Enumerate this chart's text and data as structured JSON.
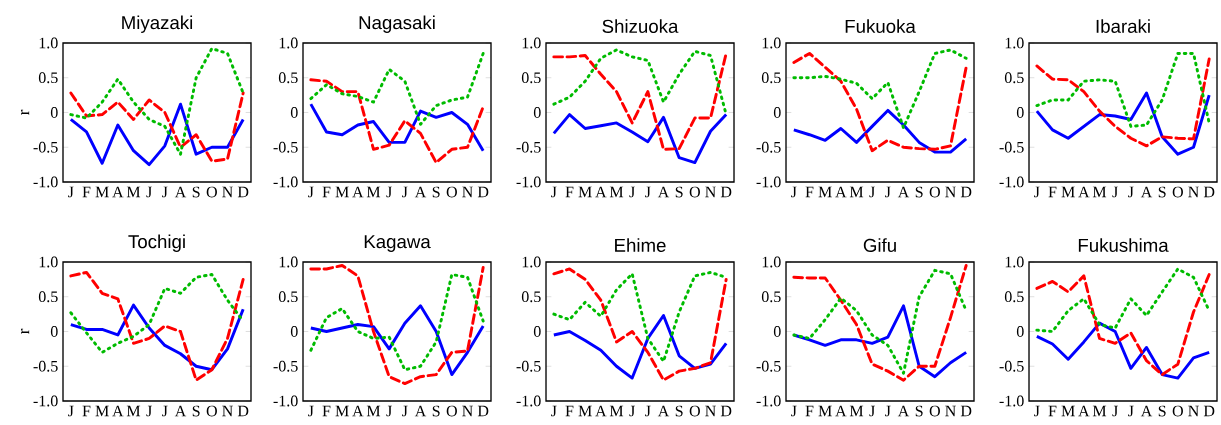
{
  "chart_data": [
    {
      "type": "line",
      "title": "Miyazaki",
      "ylabel": "r",
      "categories": [
        "J",
        "F",
        "M",
        "A",
        "M",
        "J",
        "J",
        "A",
        "S",
        "O",
        "N",
        "D"
      ],
      "ylim": [
        -1,
        1
      ],
      "yticks": [
        {
          "value": -1,
          "label": "-1.0"
        },
        {
          "value": -0.5,
          "label": "-0.5"
        },
        0,
        {
          "value": 0.5,
          "label": "0.5"
        },
        {
          "value": 1,
          "label": "1.0"
        }
      ],
      "series": [
        {
          "color": "#0000ff",
          "line_style": "solid",
          "values": [
            -0.1,
            -0.28,
            -0.73,
            -0.18,
            -0.55,
            -0.75,
            -0.48,
            0.12,
            -0.6,
            -0.5,
            -0.5,
            -0.1
          ]
        },
        {
          "color": "#ff0000",
          "line_style": "dashed",
          "values": [
            0.28,
            -0.05,
            -0.03,
            0.15,
            -0.1,
            0.18,
            0,
            -0.5,
            -0.32,
            -0.7,
            -0.67,
            0.28
          ]
        },
        {
          "color": "#00bb00",
          "line_style": "dotted",
          "values": [
            -0.03,
            -0.08,
            0.15,
            0.48,
            0.15,
            -0.1,
            -0.2,
            -0.6,
            0.5,
            0.92,
            0.85,
            0.28
          ]
        }
      ]
    },
    {
      "type": "line",
      "title": "Nagasaki",
      "categories": [
        "J",
        "F",
        "M",
        "A",
        "M",
        "J",
        "J",
        "A",
        "S",
        "O",
        "N",
        "D"
      ],
      "ylim": [
        -1,
        1
      ],
      "yticks": [
        {
          "value": -1,
          "label": "-1.0"
        },
        {
          "value": -0.5,
          "label": "-0.5"
        },
        0,
        {
          "value": 0.5,
          "label": "0.5"
        },
        {
          "value": 1,
          "label": "1.0"
        }
      ],
      "series": [
        {
          "color": "#0000ff",
          "line_style": "solid",
          "values": [
            0.12,
            -0.28,
            -0.32,
            -0.18,
            -0.13,
            -0.43,
            -0.43,
            0.02,
            -0.07,
            0.0,
            -0.17,
            -0.55
          ]
        },
        {
          "color": "#ff0000",
          "line_style": "dashed",
          "values": [
            0.47,
            0.45,
            0.3,
            0.3,
            -0.53,
            -0.47,
            -0.12,
            -0.3,
            -0.72,
            -0.53,
            -0.5,
            0.08
          ]
        },
        {
          "color": "#00bb00",
          "line_style": "dotted",
          "values": [
            0.2,
            0.4,
            0.27,
            0.23,
            0.15,
            0.62,
            0.45,
            -0.17,
            0.1,
            0.18,
            0.22,
            0.85
          ]
        }
      ]
    },
    {
      "type": "line",
      "title": "Shizuoka",
      "categories": [
        "J",
        "F",
        "M",
        "A",
        "M",
        "J",
        "J",
        "A",
        "S",
        "O",
        "N",
        "D"
      ],
      "ylim": [
        -1,
        1
      ],
      "yticks": [
        {
          "value": -1,
          "label": "-1.0"
        },
        {
          "value": -0.5,
          "label": "-0.5"
        },
        0,
        {
          "value": 0.5,
          "label": "0.5"
        },
        {
          "value": 1,
          "label": "1.0"
        }
      ],
      "series": [
        {
          "color": "#0000ff",
          "line_style": "solid",
          "values": [
            -0.3,
            -0.03,
            -0.23,
            -0.19,
            -0.15,
            -0.28,
            -0.42,
            -0.07,
            -0.65,
            -0.72,
            -0.27,
            -0.03
          ]
        },
        {
          "color": "#ff0000",
          "line_style": "dashed",
          "values": [
            0.8,
            0.8,
            0.82,
            0.55,
            0.3,
            -0.15,
            0.3,
            -0.53,
            -0.52,
            -0.08,
            -0.08,
            0.85
          ]
        },
        {
          "color": "#00bb00",
          "line_style": "dotted",
          "values": [
            0.12,
            0.22,
            0.45,
            0.78,
            0.9,
            0.8,
            0.75,
            0.15,
            0.55,
            0.88,
            0.82,
            -0.03
          ]
        }
      ]
    },
    {
      "type": "line",
      "title": "Fukuoka",
      "categories": [
        "J",
        "F",
        "M",
        "A",
        "M",
        "J",
        "J",
        "A",
        "S",
        "O",
        "N",
        "D"
      ],
      "ylim": [
        -1,
        1
      ],
      "yticks": [
        {
          "value": -1,
          "label": "-1.0"
        },
        {
          "value": -0.5,
          "label": "-0.5"
        },
        0,
        {
          "value": 0.5,
          "label": "0.5"
        },
        {
          "value": 1,
          "label": "1.0"
        }
      ],
      "series": [
        {
          "color": "#0000ff",
          "line_style": "solid",
          "values": [
            -0.25,
            -0.32,
            -0.4,
            -0.23,
            -0.43,
            -0.2,
            0.03,
            -0.18,
            -0.43,
            -0.57,
            -0.57,
            -0.38
          ]
        },
        {
          "color": "#ff0000",
          "line_style": "dashed",
          "values": [
            0.72,
            0.85,
            0.65,
            0.45,
            0.05,
            -0.55,
            -0.4,
            -0.5,
            -0.52,
            -0.53,
            -0.48,
            0.65
          ]
        },
        {
          "color": "#00bb00",
          "line_style": "dotted",
          "values": [
            0.5,
            0.5,
            0.52,
            0.48,
            0.42,
            0.2,
            0.43,
            -0.22,
            0.3,
            0.85,
            0.9,
            0.78
          ]
        }
      ]
    },
    {
      "type": "line",
      "title": "Ibaraki",
      "categories": [
        "J",
        "F",
        "M",
        "A",
        "M",
        "J",
        "J",
        "A",
        "S",
        "O",
        "N",
        "D"
      ],
      "ylim": [
        -1,
        1
      ],
      "yticks": [
        {
          "value": -1,
          "label": "-1.0"
        },
        {
          "value": -0.5,
          "label": "-0.5"
        },
        0,
        {
          "value": 0.5,
          "label": "0.5"
        },
        {
          "value": 1,
          "label": "1.0"
        }
      ],
      "series": [
        {
          "color": "#0000ff",
          "line_style": "solid",
          "values": [
            0.02,
            -0.25,
            -0.37,
            -0.2,
            -0.03,
            -0.05,
            -0.1,
            0.28,
            -0.35,
            -0.6,
            -0.5,
            0.25
          ]
        },
        {
          "color": "#ff0000",
          "line_style": "dashed",
          "values": [
            0.67,
            0.48,
            0.47,
            0.3,
            0.02,
            -0.2,
            -0.37,
            -0.48,
            -0.35,
            -0.37,
            -0.38,
            0.77
          ]
        },
        {
          "color": "#00bb00",
          "line_style": "dotted",
          "values": [
            0.1,
            0.18,
            0.18,
            0.45,
            0.47,
            0.45,
            -0.2,
            -0.18,
            0.18,
            0.85,
            0.85,
            -0.15
          ]
        }
      ]
    },
    {
      "type": "line",
      "title": "Tochigi",
      "ylabel": "r",
      "categories": [
        "J",
        "F",
        "M",
        "A",
        "M",
        "J",
        "J",
        "A",
        "S",
        "O",
        "N",
        "D"
      ],
      "ylim": [
        -1,
        1
      ],
      "yticks": [
        {
          "value": -1,
          "label": "-1.0"
        },
        {
          "value": -0.5,
          "label": "-0.5"
        },
        0,
        {
          "value": 0.5,
          "label": "0.5"
        },
        {
          "value": 1,
          "label": "1.0"
        }
      ],
      "series": [
        {
          "color": "#0000ff",
          "line_style": "solid",
          "values": [
            0.1,
            0.03,
            0.03,
            -0.05,
            0.38,
            0.05,
            -0.2,
            -0.32,
            -0.5,
            -0.55,
            -0.25,
            0.32
          ]
        },
        {
          "color": "#ff0000",
          "line_style": "dashed",
          "values": [
            0.8,
            0.85,
            0.55,
            0.47,
            -0.17,
            -0.1,
            0.08,
            0.0,
            -0.7,
            -0.55,
            -0.1,
            0.75
          ]
        },
        {
          "color": "#00bb00",
          "line_style": "dotted",
          "values": [
            0.27,
            -0.02,
            -0.3,
            -0.17,
            -0.07,
            0.1,
            0.62,
            0.55,
            0.78,
            0.82,
            0.45,
            0.15
          ]
        }
      ]
    },
    {
      "type": "line",
      "title": "Kagawa",
      "categories": [
        "J",
        "F",
        "M",
        "A",
        "M",
        "J",
        "J",
        "A",
        "S",
        "O",
        "N",
        "D"
      ],
      "ylim": [
        -1,
        1
      ],
      "yticks": [
        {
          "value": -1,
          "label": "-1.0"
        },
        {
          "value": -0.5,
          "label": "-0.5"
        },
        0,
        {
          "value": 0.5,
          "label": "0.5"
        },
        {
          "value": 1,
          "label": "1.0"
        }
      ],
      "series": [
        {
          "color": "#0000ff",
          "line_style": "solid",
          "values": [
            0.05,
            0.0,
            0.05,
            0.1,
            0.07,
            -0.25,
            0.12,
            0.37,
            0.0,
            -0.62,
            -0.3,
            0.08
          ]
        },
        {
          "color": "#ff0000",
          "line_style": "dashed",
          "values": [
            0.9,
            0.9,
            0.95,
            0.8,
            0.0,
            -0.65,
            -0.75,
            -0.65,
            -0.62,
            -0.3,
            -0.28,
            0.92
          ]
        },
        {
          "color": "#00bb00",
          "line_style": "dotted",
          "values": [
            -0.27,
            0.2,
            0.33,
            0.0,
            -0.1,
            -0.08,
            -0.55,
            -0.5,
            -0.15,
            0.82,
            0.78,
            0.15
          ]
        }
      ]
    },
    {
      "type": "line",
      "title": "Ehime",
      "categories": [
        "J",
        "F",
        "M",
        "A",
        "M",
        "J",
        "J",
        "A",
        "S",
        "O",
        "N",
        "D"
      ],
      "ylim": [
        -1,
        1
      ],
      "yticks": [
        {
          "value": -1,
          "label": "-1.0"
        },
        {
          "value": -0.5,
          "label": "-0.5"
        },
        0,
        {
          "value": 0.5,
          "label": "0.5"
        },
        {
          "value": 1,
          "label": "1.0"
        }
      ],
      "series": [
        {
          "color": "#0000ff",
          "line_style": "solid",
          "values": [
            -0.05,
            0.0,
            -0.13,
            -0.27,
            -0.5,
            -0.67,
            -0.1,
            0.23,
            -0.35,
            -0.53,
            -0.47,
            -0.17
          ]
        },
        {
          "color": "#ff0000",
          "line_style": "dashed",
          "values": [
            0.83,
            0.9,
            0.75,
            0.45,
            -0.15,
            0.0,
            -0.3,
            -0.7,
            -0.57,
            -0.53,
            -0.45,
            0.75
          ]
        },
        {
          "color": "#00bb00",
          "line_style": "dotted",
          "values": [
            0.25,
            0.17,
            0.42,
            0.22,
            0.6,
            0.83,
            -0.1,
            -0.43,
            0.28,
            0.8,
            0.85,
            0.78
          ]
        }
      ]
    },
    {
      "type": "line",
      "title": "Gifu",
      "categories": [
        "J",
        "F",
        "M",
        "A",
        "M",
        "J",
        "J",
        "A",
        "S",
        "O",
        "N",
        "D"
      ],
      "ylim": [
        -1,
        1
      ],
      "yticks": [
        {
          "value": -1,
          "label": "-1.0"
        },
        {
          "value": -0.5,
          "label": "-0.5"
        },
        0,
        {
          "value": 0.5,
          "label": "0.5"
        },
        {
          "value": 1,
          "label": "1.0"
        }
      ],
      "series": [
        {
          "color": "#0000ff",
          "line_style": "solid",
          "values": [
            -0.05,
            -0.12,
            -0.2,
            -0.12,
            -0.12,
            -0.17,
            -0.08,
            0.37,
            -0.5,
            -0.65,
            -0.45,
            -0.3
          ]
        },
        {
          "color": "#ff0000",
          "line_style": "dashed",
          "values": [
            0.78,
            0.77,
            0.77,
            0.45,
            0.1,
            -0.47,
            -0.57,
            -0.7,
            -0.5,
            -0.5,
            0.2,
            0.95
          ]
        },
        {
          "color": "#00bb00",
          "line_style": "dotted",
          "values": [
            -0.05,
            -0.1,
            0.17,
            0.48,
            0.3,
            -0.05,
            -0.2,
            -0.6,
            0.5,
            0.88,
            0.83,
            0.3
          ]
        }
      ]
    },
    {
      "type": "line",
      "title": "Fukushima",
      "categories": [
        "J",
        "F",
        "M",
        "A",
        "M",
        "J",
        "J",
        "A",
        "S",
        "O",
        "N",
        "D"
      ],
      "ylim": [
        -1,
        1
      ],
      "yticks": [
        {
          "value": -1,
          "label": "-1.0"
        },
        {
          "value": -0.5,
          "label": "-0.5"
        },
        0,
        {
          "value": 0.5,
          "label": "0.5"
        },
        {
          "value": 1,
          "label": "1.0"
        }
      ],
      "series": [
        {
          "color": "#0000ff",
          "line_style": "solid",
          "values": [
            -0.07,
            -0.18,
            -0.4,
            -0.15,
            0.12,
            0.0,
            -0.53,
            -0.23,
            -0.62,
            -0.67,
            -0.38,
            -0.3
          ]
        },
        {
          "color": "#ff0000",
          "line_style": "dashed",
          "values": [
            0.62,
            0.72,
            0.57,
            0.8,
            -0.1,
            -0.17,
            -0.02,
            -0.42,
            -0.62,
            -0.47,
            0.28,
            0.82
          ]
        },
        {
          "color": "#00bb00",
          "line_style": "dotted",
          "values": [
            0.02,
            0.0,
            0.3,
            0.47,
            0.1,
            0.05,
            0.47,
            0.23,
            0.57,
            0.9,
            0.78,
            0.3
          ]
        }
      ]
    }
  ]
}
